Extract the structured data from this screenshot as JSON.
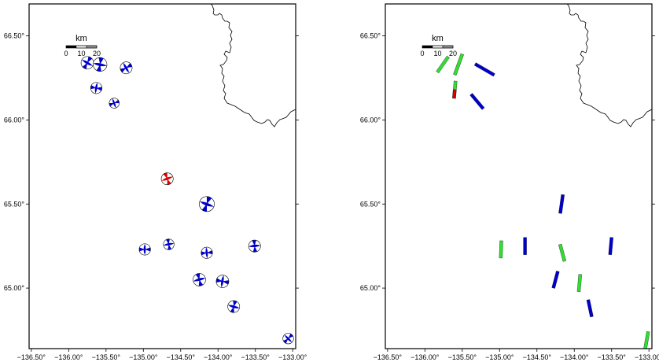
{
  "maps": [
    {
      "id": "focal-mechanisms"
    },
    {
      "id": "fault-planes"
    }
  ],
  "scale_bar": {
    "unit": "km",
    "ticks": [
      "0",
      "10",
      "20"
    ]
  },
  "x_ticks": [
    {
      "value": -136.5,
      "label": "−136.50°"
    },
    {
      "value": -136.0,
      "label": "−136.00°"
    },
    {
      "value": -135.5,
      "label": "−135.50°"
    },
    {
      "value": -135.0,
      "label": "−135.00°"
    },
    {
      "value": -134.5,
      "label": "−134.50°"
    },
    {
      "value": -134.0,
      "label": "−134.00°"
    },
    {
      "value": -133.5,
      "label": "−133.50°"
    },
    {
      "value": -133.0,
      "label": "−133.00°"
    }
  ],
  "y_ticks": [
    {
      "value": 66.5,
      "label": "66.50°"
    },
    {
      "value": 66.0,
      "label": "66.00°"
    },
    {
      "value": 65.5,
      "label": "65.50°"
    },
    {
      "value": 65.0,
      "label": "65.00°"
    }
  ],
  "extent": {
    "lon": [
      -136.53,
      -132.96
    ],
    "lat": [
      64.64,
      66.69
    ]
  },
  "colors": {
    "blue": "#0000cc",
    "red": "#dd0000",
    "green": "#33dd33"
  },
  "beachballs": [
    {
      "lon": -135.75,
      "lat": 66.34,
      "size": 1.0,
      "color": "blue",
      "rot": 30
    },
    {
      "lon": -135.58,
      "lat": 66.33,
      "size": 1.1,
      "color": "blue",
      "rot": 10
    },
    {
      "lon": -135.23,
      "lat": 66.31,
      "size": 0.95,
      "color": "blue",
      "rot": 60
    },
    {
      "lon": -135.63,
      "lat": 66.19,
      "size": 0.9,
      "color": "blue",
      "rot": 100
    },
    {
      "lon": -135.39,
      "lat": 66.1,
      "size": 0.8,
      "color": "blue",
      "rot": 70
    },
    {
      "lon": -134.68,
      "lat": 65.65,
      "size": 0.95,
      "color": "red",
      "rot": 160
    },
    {
      "lon": -134.15,
      "lat": 65.5,
      "size": 1.2,
      "color": "blue",
      "rot": 20
    },
    {
      "lon": -134.98,
      "lat": 65.23,
      "size": 0.9,
      "color": "blue",
      "rot": 90
    },
    {
      "lon": -134.66,
      "lat": 65.26,
      "size": 0.85,
      "color": "blue",
      "rot": 170
    },
    {
      "lon": -134.15,
      "lat": 65.21,
      "size": 0.9,
      "color": "blue",
      "rot": 85
    },
    {
      "lon": -133.51,
      "lat": 65.25,
      "size": 0.95,
      "color": "blue",
      "rot": 175
    },
    {
      "lon": -134.25,
      "lat": 65.05,
      "size": 1.0,
      "color": "blue",
      "rot": 165
    },
    {
      "lon": -133.94,
      "lat": 65.04,
      "size": 1.0,
      "color": "blue",
      "rot": 100
    },
    {
      "lon": -133.79,
      "lat": 64.89,
      "size": 0.95,
      "color": "blue",
      "rot": 15
    },
    {
      "lon": -133.06,
      "lat": 64.7,
      "size": 0.85,
      "color": "blue",
      "rot": 45
    }
  ],
  "fault_segments": [
    {
      "lon": -135.76,
      "lat": 66.33,
      "strike": 35,
      "length": 12,
      "color": "green"
    },
    {
      "lon": -135.55,
      "lat": 66.33,
      "strike": 20,
      "length": 14,
      "color": "green"
    },
    {
      "lon": -135.2,
      "lat": 66.3,
      "strike": 120,
      "length": 14,
      "color": "blue"
    },
    {
      "lon": -135.6,
      "lat": 66.18,
      "strike": 5,
      "length": 11,
      "color": "green",
      "tail_color": "red"
    },
    {
      "lon": -135.3,
      "lat": 66.11,
      "strike": 140,
      "length": 12,
      "color": "blue"
    },
    {
      "lon": -134.17,
      "lat": 65.5,
      "strike": 8,
      "length": 12,
      "color": "blue"
    },
    {
      "lon": -134.98,
      "lat": 65.23,
      "strike": 2,
      "length": 11,
      "color": "green"
    },
    {
      "lon": -134.66,
      "lat": 65.25,
      "strike": 0,
      "length": 11,
      "color": "blue"
    },
    {
      "lon": -134.16,
      "lat": 65.21,
      "strike": 165,
      "length": 11,
      "color": "green"
    },
    {
      "lon": -133.51,
      "lat": 65.25,
      "strike": 5,
      "length": 11,
      "color": "blue"
    },
    {
      "lon": -134.25,
      "lat": 65.05,
      "strike": 15,
      "length": 11,
      "color": "blue"
    },
    {
      "lon": -133.93,
      "lat": 65.03,
      "strike": 5,
      "length": 11,
      "color": "green"
    },
    {
      "lon": -133.79,
      "lat": 64.88,
      "strike": 168,
      "length": 11,
      "color": "blue"
    },
    {
      "lon": -133.03,
      "lat": 64.69,
      "strike": 10,
      "length": 11,
      "color": "green"
    }
  ]
}
